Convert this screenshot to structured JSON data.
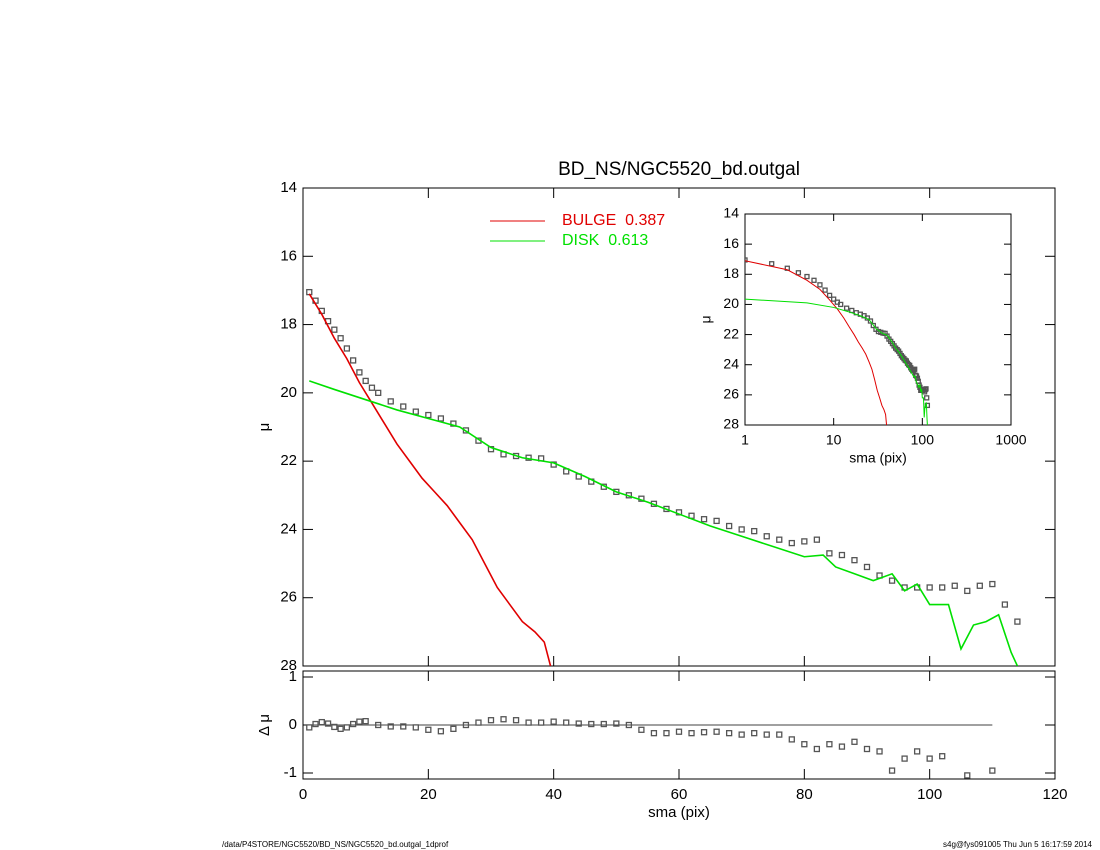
{
  "title": "BD_NS/NGC5520_bd.outgal",
  "footer_left": "/data/P4STORE/NGC5520/BD_NS/NGC5520_bd.outgal_1dprof",
  "footer_right": "s4g@fys091005  Thu Jun  5 16:17:59 2014",
  "chart_data": [
    {
      "type": "line",
      "ylabel": "μ",
      "xlim": [
        0,
        120
      ],
      "xticks": [
        0,
        20,
        40,
        60,
        80,
        100,
        120
      ],
      "ylim": [
        14,
        28
      ],
      "yticks": [
        14,
        16,
        18,
        20,
        22,
        24,
        26,
        28
      ],
      "yinvert": true,
      "legend": "top-center",
      "series": [
        {
          "color": "#555555",
          "marker": "square",
          "x": [
            1,
            2,
            3,
            4,
            5,
            6,
            7,
            8,
            9,
            10,
            11,
            12,
            14,
            16,
            18,
            20,
            22,
            24,
            26,
            28,
            30,
            32,
            34,
            36,
            38,
            40,
            42,
            44,
            46,
            48,
            50,
            52,
            54,
            56,
            58,
            60,
            62,
            64,
            66,
            68,
            70,
            72,
            74,
            76,
            78,
            80,
            82,
            84,
            86,
            88,
            90,
            92,
            94,
            96,
            98,
            100,
            102,
            104,
            106,
            108,
            110,
            112,
            114
          ],
          "values": [
            17.05,
            17.3,
            17.6,
            17.9,
            18.15,
            18.4,
            18.7,
            19.05,
            19.4,
            19.65,
            19.85,
            20.0,
            20.25,
            20.4,
            20.55,
            20.65,
            20.75,
            20.9,
            21.1,
            21.4,
            21.65,
            21.8,
            21.85,
            21.9,
            21.92,
            22.1,
            22.3,
            22.45,
            22.6,
            22.75,
            22.9,
            23.0,
            23.1,
            23.25,
            23.4,
            23.5,
            23.6,
            23.7,
            23.75,
            23.9,
            24.0,
            24.05,
            24.2,
            24.3,
            24.4,
            24.35,
            24.3,
            24.7,
            24.75,
            24.9,
            25.1,
            25.35,
            25.5,
            25.7,
            25.7,
            25.7,
            25.7,
            25.65,
            25.8,
            25.65,
            25.6,
            26.2,
            26.7
          ]
        },
        {
          "name": "BULGE  0.387",
          "color": "#e00000",
          "marker": "none",
          "x": [
            1,
            3,
            5,
            7,
            9,
            11,
            13,
            15,
            17,
            19,
            21,
            23,
            25,
            27,
            29,
            31,
            33,
            35,
            37,
            38.5,
            39.5
          ],
          "values": [
            17.1,
            17.7,
            18.4,
            19.0,
            19.7,
            20.3,
            20.9,
            21.5,
            22.0,
            22.5,
            22.9,
            23.3,
            23.8,
            24.3,
            25.0,
            25.7,
            26.2,
            26.7,
            27.0,
            27.3,
            28.0
          ]
        },
        {
          "name": "DISK  0.613",
          "color": "#00e000",
          "marker": "none",
          "x": [
            1,
            5,
            10,
            15,
            20,
            25,
            30,
            35,
            40,
            45,
            50,
            55,
            60,
            65,
            70,
            75,
            80,
            83,
            85,
            88,
            91,
            94,
            96,
            98,
            100,
            103,
            105,
            107,
            109,
            111,
            113,
            114
          ],
          "values": [
            19.65,
            19.9,
            20.2,
            20.5,
            20.75,
            21.0,
            21.6,
            21.9,
            22.05,
            22.45,
            22.9,
            23.2,
            23.55,
            23.9,
            24.2,
            24.5,
            24.8,
            24.75,
            25.1,
            25.3,
            25.5,
            25.3,
            25.8,
            25.6,
            26.2,
            26.2,
            27.5,
            26.8,
            26.7,
            26.5,
            27.6,
            28.0
          ]
        }
      ]
    },
    {
      "type": "line",
      "ylabel": "Δ μ",
      "xlabel": "sma (pix)",
      "xlim": [
        0,
        120
      ],
      "xticks": [
        0,
        20,
        40,
        60,
        80,
        100,
        120
      ],
      "ylim": [
        -1.125,
        1.125
      ],
      "yticks": [
        -1,
        0,
        1
      ],
      "series": [
        {
          "color": "#555555",
          "marker": "square",
          "x": [
            1,
            2,
            3,
            4,
            5,
            6,
            7,
            8,
            9,
            10,
            12,
            14,
            16,
            18,
            20,
            22,
            24,
            26,
            28,
            30,
            32,
            34,
            36,
            38,
            40,
            42,
            44,
            46,
            48,
            50,
            52,
            54,
            56,
            58,
            60,
            62,
            64,
            66,
            68,
            70,
            72,
            74,
            76,
            78,
            80,
            82,
            84,
            86,
            88,
            90,
            92,
            94,
            96,
            98,
            100,
            102,
            106,
            110
          ],
          "values": [
            -0.05,
            0.02,
            0.06,
            0.03,
            -0.04,
            -0.08,
            -0.05,
            0.02,
            0.07,
            0.08,
            0.0,
            -0.03,
            -0.03,
            -0.05,
            -0.1,
            -0.13,
            -0.08,
            0.0,
            0.05,
            0.1,
            0.12,
            0.1,
            0.05,
            0.05,
            0.07,
            0.05,
            0.03,
            0.02,
            0.02,
            0.03,
            0.0,
            -0.1,
            -0.17,
            -0.17,
            -0.14,
            -0.17,
            -0.15,
            -0.14,
            -0.17,
            -0.2,
            -0.17,
            -0.2,
            -0.2,
            -0.3,
            -0.4,
            -0.5,
            -0.4,
            -0.45,
            -0.35,
            -0.5,
            -0.55,
            -0.95,
            -0.7,
            -0.55,
            -0.7,
            -0.65,
            -1.05,
            -0.95
          ]
        }
      ]
    },
    {
      "type": "line",
      "ylabel": "μ",
      "xlabel": "sma (pix)",
      "xlog": true,
      "xlim": [
        1,
        1000
      ],
      "xticks": [
        1,
        10,
        100,
        1000
      ],
      "ylim": [
        14,
        28
      ],
      "yticks": [
        14,
        16,
        18,
        20,
        22,
        24,
        26,
        28
      ],
      "yinvert": true
    }
  ]
}
